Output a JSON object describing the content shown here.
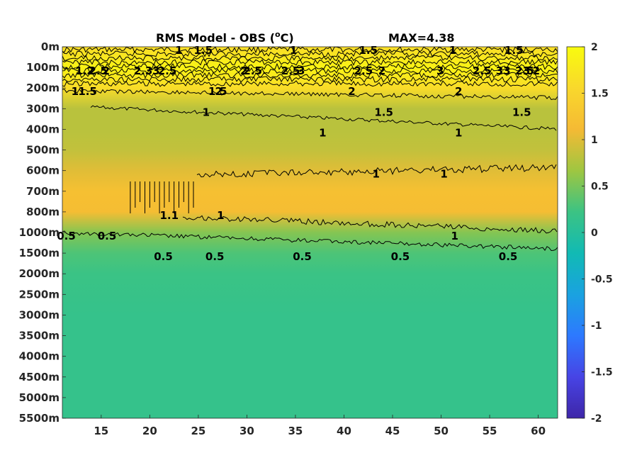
{
  "chart_data": {
    "type": "heatmap",
    "title": "RMS Model - OBS (",
    "title_sup": "o",
    "title_unit": "C)",
    "max_label": "MAX=4.38",
    "x_ticks": [
      15,
      20,
      25,
      30,
      35,
      40,
      45,
      50,
      55,
      60
    ],
    "xlim": [
      11,
      62
    ],
    "y_ticks": [
      "0m",
      "100m",
      "200m",
      "300m",
      "400m",
      "500m",
      "600m",
      "700m",
      "800m",
      "1000m",
      "1500m",
      "2000m",
      "2500m",
      "3000m",
      "3500m",
      "4000m",
      "4500m",
      "5000m",
      "5500m"
    ],
    "colorbar": {
      "range": [
        -2,
        2
      ],
      "ticks": [
        "2",
        "1.5",
        "1",
        "0.5",
        "0",
        "-0.5",
        "-1",
        "-1.5",
        "-2"
      ],
      "colormap": "parula",
      "colors": [
        "#3e26a8",
        "#4744e5",
        "#2d79ff",
        "#1aa2e0",
        "#11bab4",
        "#3cc383",
        "#9fc641",
        "#f5ba34",
        "#f9d82c",
        "#f9fb0e"
      ]
    },
    "depth_profile": [
      {
        "depth": "0m",
        "value": 1.6
      },
      {
        "depth": "100m",
        "value": 1.9
      },
      {
        "depth": "200m",
        "value": 1.6
      },
      {
        "depth": "300m",
        "value": 0.8
      },
      {
        "depth": "400m",
        "value": 0.8
      },
      {
        "depth": "500m",
        "value": 0.85
      },
      {
        "depth": "600m",
        "value": 1.0
      },
      {
        "depth": "700m",
        "value": 1.2
      },
      {
        "depth": "800m",
        "value": 1.15
      },
      {
        "depth": "1000m",
        "value": 0.55
      },
      {
        "depth": "1500m",
        "value": 0.3
      },
      {
        "depth": "2000m",
        "value": 0.2
      },
      {
        "depth": "3000m",
        "value": 0.15
      },
      {
        "depth": "5500m",
        "value": 0.15
      }
    ],
    "contour_labels": [
      {
        "text": "2",
        "x": 15.5,
        "depth": "100m"
      },
      {
        "text": "1",
        "x": 23.0,
        "depth": "0m"
      },
      {
        "text": "1.5",
        "x": 25.5,
        "depth": "0m"
      },
      {
        "text": "2.5",
        "x": 21.8,
        "depth": "100m"
      },
      {
        "text": "2",
        "x": 29.7,
        "depth": "100m"
      },
      {
        "text": "1",
        "x": 34.8,
        "depth": "0m"
      },
      {
        "text": "2.5",
        "x": 34.5,
        "depth": "100m"
      },
      {
        "text": "3",
        "x": 35.6,
        "depth": "100m"
      },
      {
        "text": "2.5",
        "x": 30.6,
        "depth": "100m"
      },
      {
        "text": "1.5",
        "x": 42.5,
        "depth": "0m"
      },
      {
        "text": "2",
        "x": 43.9,
        "depth": "100m"
      },
      {
        "text": "2.5",
        "x": 42.0,
        "depth": "100m"
      },
      {
        "text": "1",
        "x": 51.2,
        "depth": "0m"
      },
      {
        "text": "3",
        "x": 49.9,
        "depth": "100m"
      },
      {
        "text": "1.5",
        "x": 57.5,
        "depth": "0m"
      },
      {
        "text": "2",
        "x": 59.8,
        "depth": "100m"
      },
      {
        "text": "2.5",
        "x": 58.6,
        "depth": "100m"
      },
      {
        "text": "2.5",
        "x": 54.2,
        "depth": "100m"
      },
      {
        "text": "33",
        "x": 56.4,
        "depth": "100m"
      },
      {
        "text": "3",
        "x": 58.8,
        "depth": "100m"
      },
      {
        "text": "1.2",
        "x": 13.3,
        "depth": "100m"
      },
      {
        "text": "1.5",
        "x": 13.6,
        "depth": "200m"
      },
      {
        "text": "2.5",
        "x": 14.7,
        "depth": "100m"
      },
      {
        "text": "1",
        "x": 12.3,
        "depth": "200m"
      },
      {
        "text": "2.33",
        "x": 19.7,
        "depth": "100m"
      },
      {
        "text": "2",
        "x": 27.1,
        "depth": "200m"
      },
      {
        "text": "1.5",
        "x": 27.0,
        "depth": "200m"
      },
      {
        "text": "2",
        "x": 40.8,
        "depth": "200m"
      },
      {
        "text": "2",
        "x": 51.8,
        "depth": "200m"
      },
      {
        "text": "1.5",
        "x": 44.1,
        "depth": "300m"
      },
      {
        "text": "1.5",
        "x": 58.3,
        "depth": "300m"
      },
      {
        "text": "1",
        "x": 25.8,
        "depth": "300m"
      },
      {
        "text": "1",
        "x": 37.8,
        "depth": "400m"
      },
      {
        "text": "1",
        "x": 51.8,
        "depth": "400m"
      },
      {
        "text": "1",
        "x": 43.3,
        "depth": "600m"
      },
      {
        "text": "1",
        "x": 50.3,
        "depth": "600m"
      },
      {
        "text": "1",
        "x": 27.3,
        "depth": "800m"
      },
      {
        "text": "1",
        "x": 51.4,
        "depth": "1000m"
      },
      {
        "text": "1.1",
        "x": 22.0,
        "depth": "800m"
      },
      {
        "text": "0.5",
        "x": 11.4,
        "depth": "1000m"
      },
      {
        "text": "0.5",
        "x": 15.6,
        "depth": "1000m"
      },
      {
        "text": "0.5",
        "x": 21.4,
        "depth": "1500m"
      },
      {
        "text": "0.5",
        "x": 26.7,
        "depth": "1500m"
      },
      {
        "text": "0.5",
        "x": 35.7,
        "depth": "1500m"
      },
      {
        "text": "0.5",
        "x": 45.8,
        "depth": "1500m"
      },
      {
        "text": "0.5",
        "x": 56.9,
        "depth": "1500m"
      }
    ]
  }
}
